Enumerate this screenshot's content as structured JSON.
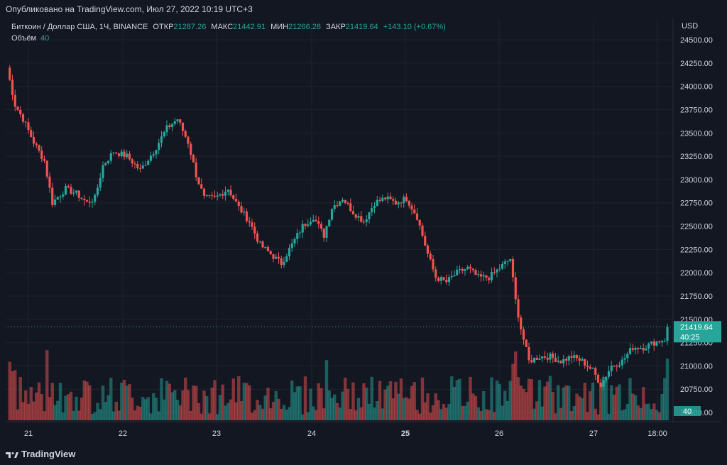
{
  "header": {
    "published": "Опубликовано на TradingView.com, Июл 27, 2022 10:19 UTC+3"
  },
  "legend": {
    "symbol": "Биткоин / Доллар США, 1Ч, BINANCE",
    "open_label": "ОТКР",
    "open": "21287.26",
    "high_label": "МАКС",
    "high": "21442.91",
    "low_label": "МИН",
    "low": "21266.28",
    "close_label": "ЗАКР",
    "close": "21419.64",
    "change": "+143.10 (+0.67%)",
    "volume_label": "Объём",
    "volume": "40"
  },
  "price_badge": {
    "price": "21419.64",
    "countdown": "40:25"
  },
  "volume_badge": "40",
  "footer": {
    "brand": "TradingView"
  },
  "colors": {
    "up": "#26a69a",
    "down": "#ef5350",
    "background": "#131722",
    "grid": "#1f2330",
    "text": "#d1d4dc"
  },
  "chart_data": {
    "type": "candlestick",
    "currency": "USD",
    "y_ticks": [
      "24500.00",
      "24250.00",
      "24000.00",
      "23750.00",
      "23500.00",
      "23250.00",
      "23000.00",
      "22750.00",
      "22500.00",
      "22250.00",
      "22000.00",
      "21750.00",
      "21500.00",
      "21250.00",
      "21000.00",
      "20750.00",
      "20500.00"
    ],
    "ylim": [
      20500,
      24500
    ],
    "x_ticks": [
      "21",
      "22",
      "23",
      "24",
      "25",
      "26",
      "27",
      "18:00"
    ],
    "last_price": 21419.64,
    "close_path": [
      [
        0,
        24200
      ],
      [
        3,
        23800
      ],
      [
        6,
        23650
      ],
      [
        10,
        23400
      ],
      [
        14,
        23200
      ],
      [
        17,
        22750
      ],
      [
        22,
        22900
      ],
      [
        26,
        22850
      ],
      [
        30,
        22750
      ],
      [
        33,
        22800
      ],
      [
        36,
        23150
      ],
      [
        40,
        23300
      ],
      [
        45,
        23250
      ],
      [
        50,
        23100
      ],
      [
        55,
        23300
      ],
      [
        60,
        23550
      ],
      [
        64,
        23650
      ],
      [
        68,
        23400
      ],
      [
        71,
        23050
      ],
      [
        74,
        22800
      ],
      [
        78,
        22800
      ],
      [
        83,
        22900
      ],
      [
        87,
        22700
      ],
      [
        91,
        22550
      ],
      [
        95,
        22300
      ],
      [
        99,
        22200
      ],
      [
        103,
        22100
      ],
      [
        107,
        22300
      ],
      [
        111,
        22500
      ],
      [
        115,
        22600
      ],
      [
        119,
        22400
      ],
      [
        122,
        22700
      ],
      [
        126,
        22800
      ],
      [
        130,
        22650
      ],
      [
        134,
        22550
      ],
      [
        138,
        22750
      ],
      [
        142,
        22800
      ],
      [
        146,
        22750
      ],
      [
        150,
        22800
      ],
      [
        154,
        22600
      ],
      [
        158,
        22200
      ],
      [
        161,
        21950
      ],
      [
        165,
        21900
      ],
      [
        169,
        22000
      ],
      [
        173,
        22050
      ],
      [
        177,
        21950
      ],
      [
        181,
        21950
      ],
      [
        185,
        22050
      ],
      [
        189,
        22150
      ],
      [
        191,
        21700
      ],
      [
        193,
        21400
      ],
      [
        196,
        21050
      ],
      [
        200,
        21100
      ],
      [
        204,
        21100
      ],
      [
        208,
        21050
      ],
      [
        212,
        21100
      ],
      [
        216,
        21050
      ],
      [
        220,
        20950
      ],
      [
        223,
        20800
      ],
      [
        227,
        21000
      ],
      [
        231,
        21050
      ],
      [
        235,
        21200
      ],
      [
        239,
        21200
      ],
      [
        243,
        21250
      ],
      [
        247,
        21287
      ],
      [
        248,
        21419.64
      ]
    ],
    "volume_max": 1000
  }
}
